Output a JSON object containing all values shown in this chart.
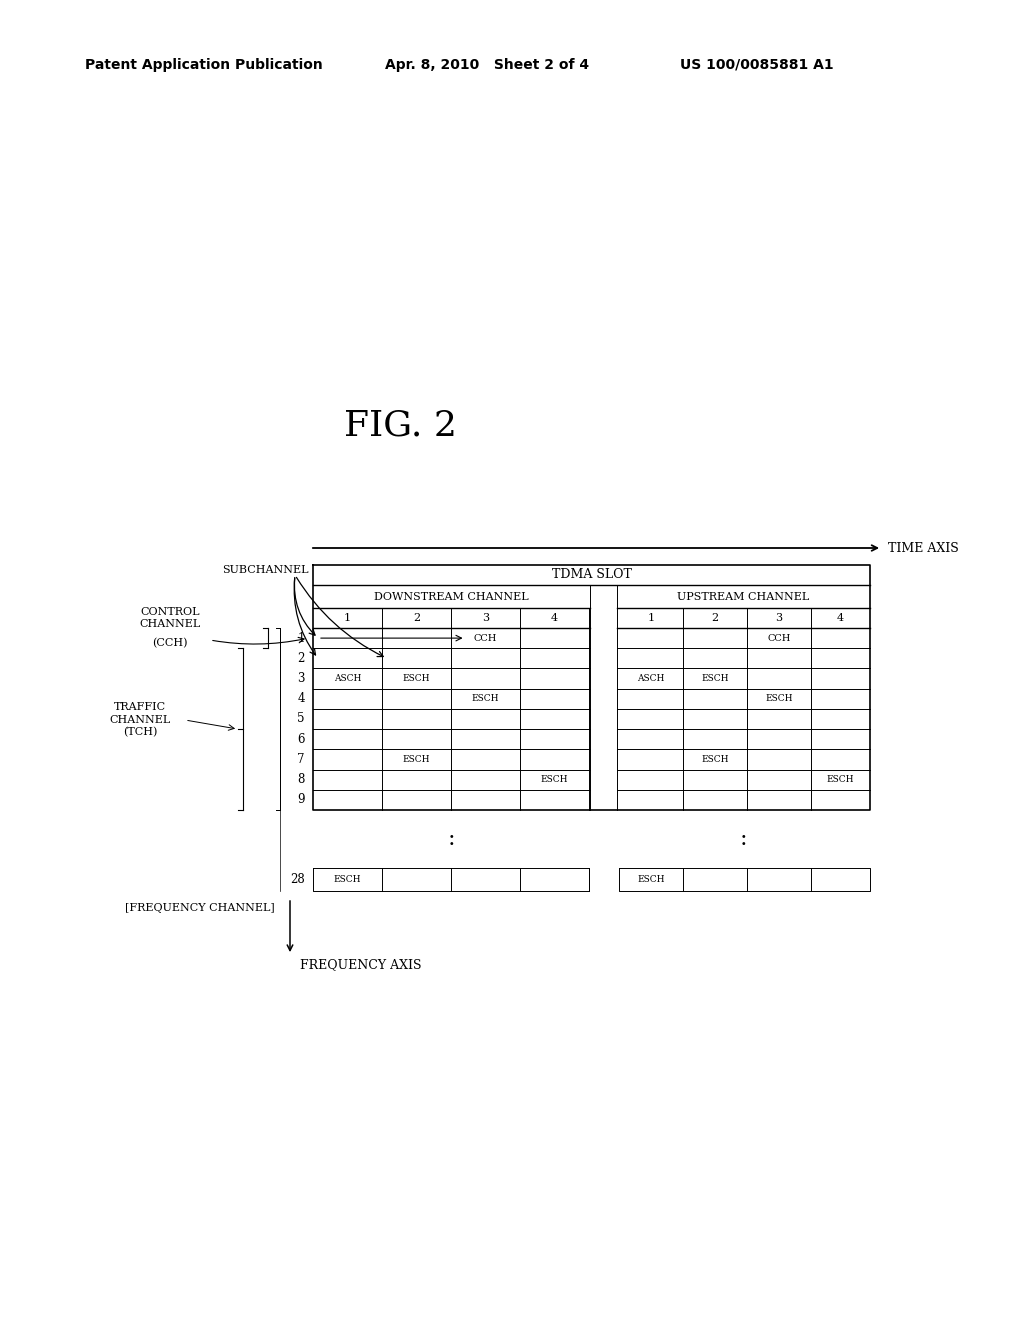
{
  "patent_header": "Patent Application Publication",
  "patent_date": "Apr. 8, 2010   Sheet 2 of 4",
  "patent_number": "US 100/0085881 A1",
  "fig_title": "FIG. 2",
  "bg_color": "#ffffff",
  "text_color": "#000000"
}
